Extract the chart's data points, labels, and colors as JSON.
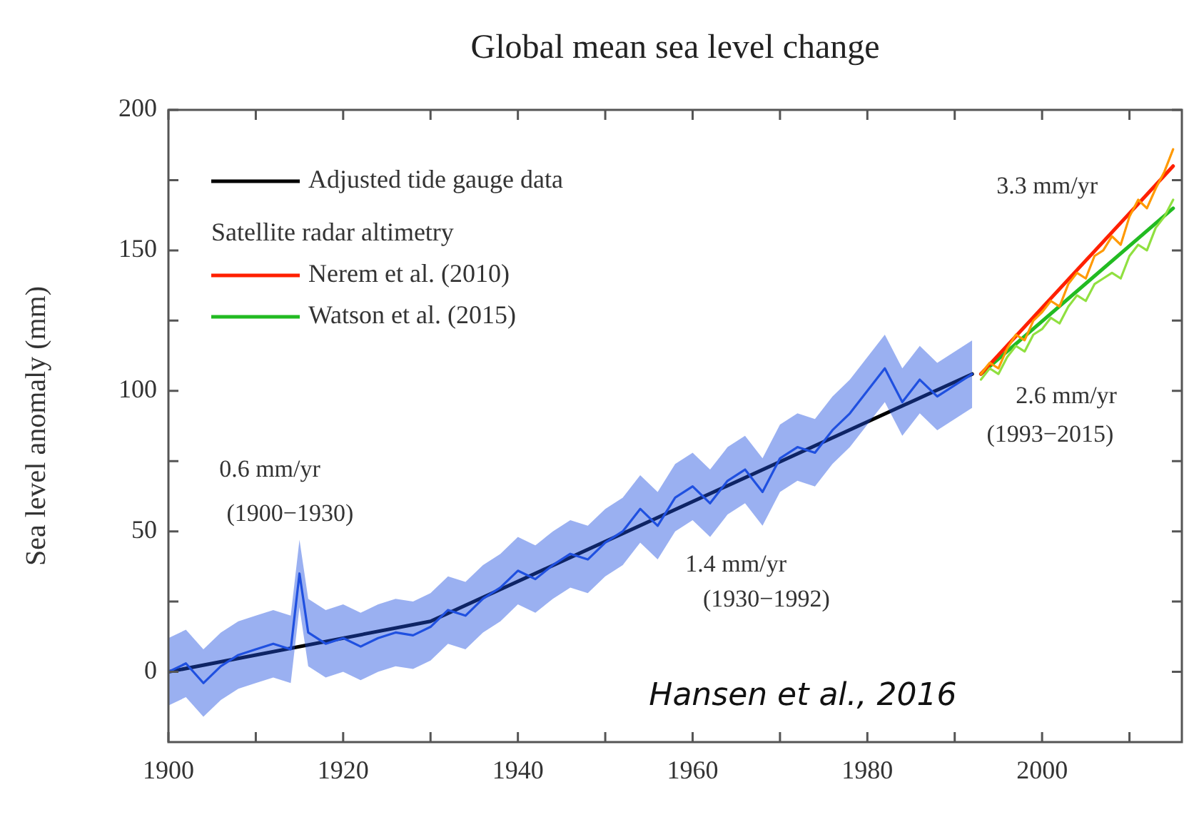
{
  "chart_data": {
    "type": "line",
    "title": "Global mean sea level change",
    "ylabel": "Sea level anomaly (mm)",
    "legend_title": "Satellite radar altimetry",
    "legend": "top left",
    "grid": false,
    "marker": "none",
    "line_style": "solid",
    "xlim": [
      1900,
      2016
    ],
    "xticks": [
      1900,
      {
        "value": 1910,
        "label": null
      },
      1920,
      {
        "value": 1930,
        "label": null
      },
      1940,
      {
        "value": 1950,
        "label": null
      },
      1960,
      {
        "value": 1970,
        "label": null
      },
      1980,
      {
        "value": 1990,
        "label": null
      },
      2000,
      {
        "value": 2010,
        "label": null
      }
    ],
    "ylim": [
      -25,
      200
    ],
    "yticks": [
      0,
      {
        "value": 25,
        "label": null
      },
      50,
      {
        "value": 75,
        "label": null
      },
      100,
      {
        "value": 125,
        "label": null
      },
      150,
      {
        "value": 175,
        "label": null
      },
      200
    ],
    "series": [
      {
        "color": "#2050e0",
        "x": [
          1900,
          1902,
          1904,
          1906,
          1908,
          1910,
          1912,
          1914,
          1915,
          1916,
          1918,
          1920,
          1922,
          1924,
          1926,
          1928,
          1930,
          1932,
          1934,
          1936,
          1938,
          1940,
          1942,
          1944,
          1946,
          1948,
          1950,
          1952,
          1954,
          1956,
          1958,
          1960,
          1962,
          1964,
          1966,
          1968,
          1970,
          1972,
          1974,
          1976,
          1978,
          1980,
          1982,
          1984,
          1986,
          1988,
          1990,
          1992
        ],
        "values": [
          0,
          3,
          -4,
          2,
          6,
          8,
          10,
          8,
          35,
          14,
          10,
          12,
          9,
          12,
          14,
          13,
          16,
          22,
          20,
          26,
          30,
          36,
          33,
          38,
          42,
          40,
          46,
          50,
          58,
          52,
          62,
          66,
          60,
          68,
          72,
          64,
          76,
          80,
          78,
          86,
          92,
          100,
          108,
          96,
          104,
          98,
          102,
          106
        ],
        "lower": [
          -12,
          -9,
          -16,
          -10,
          -6,
          -4,
          -2,
          -4,
          23,
          2,
          -2,
          0,
          -3,
          0,
          2,
          1,
          4,
          10,
          8,
          14,
          18,
          24,
          21,
          26,
          30,
          28,
          34,
          38,
          46,
          40,
          50,
          54,
          48,
          56,
          60,
          52,
          64,
          68,
          66,
          74,
          80,
          88,
          96,
          84,
          92,
          86,
          90,
          94
        ],
        "upper": [
          12,
          15,
          8,
          14,
          18,
          20,
          22,
          20,
          47,
          26,
          22,
          24,
          21,
          24,
          26,
          25,
          28,
          34,
          32,
          38,
          42,
          48,
          45,
          50,
          54,
          52,
          58,
          62,
          70,
          64,
          74,
          78,
          72,
          80,
          84,
          76,
          88,
          92,
          90,
          98,
          104,
          112,
          120,
          108,
          116,
          110,
          114,
          118
        ]
      },
      {
        "name": "Adjusted tide gauge data",
        "color": "#000000",
        "x": [
          1900,
          1930,
          1992
        ],
        "values": [
          0,
          18,
          106
        ]
      },
      {
        "color": "#ff9900",
        "x": [
          1993,
          1994,
          1995,
          1996,
          1997,
          1998,
          1999,
          2000,
          2001,
          2002,
          2003,
          2004,
          2005,
          2006,
          2007,
          2008,
          2009,
          2010,
          2011,
          2012,
          2013,
          2014,
          2015
        ],
        "values": [
          106,
          110,
          108,
          115,
          120,
          118,
          125,
          128,
          132,
          130,
          138,
          142,
          140,
          148,
          150,
          155,
          152,
          162,
          168,
          165,
          172,
          178,
          186
        ]
      },
      {
        "color": "#90e040",
        "x": [
          1993,
          1994,
          1995,
          1996,
          1997,
          1998,
          1999,
          2000,
          2001,
          2002,
          2003,
          2004,
          2005,
          2006,
          2007,
          2008,
          2009,
          2010,
          2011,
          2012,
          2013,
          2014,
          2015
        ],
        "values": [
          104,
          108,
          106,
          112,
          116,
          114,
          120,
          122,
          126,
          124,
          130,
          134,
          132,
          138,
          140,
          142,
          140,
          148,
          152,
          150,
          158,
          162,
          168
        ]
      },
      {
        "name": "Nerem et al. (2010)",
        "color": "#ff2000",
        "x": [
          1993,
          2015
        ],
        "values": [
          106,
          180
        ]
      },
      {
        "name": "Watson et al. (2015)",
        "color": "#22bb22",
        "x": [
          1993,
          2015
        ],
        "values": [
          106,
          165
        ]
      }
    ],
    "annotations": [
      "0.6 mm/yr",
      "(1900−1930)",
      "1.4 mm/yr",
      "(1930−1992)",
      "3.3 mm/yr",
      "2.6 mm/yr",
      "(1993−2015)",
      "Hansen et al., 2016"
    ]
  }
}
